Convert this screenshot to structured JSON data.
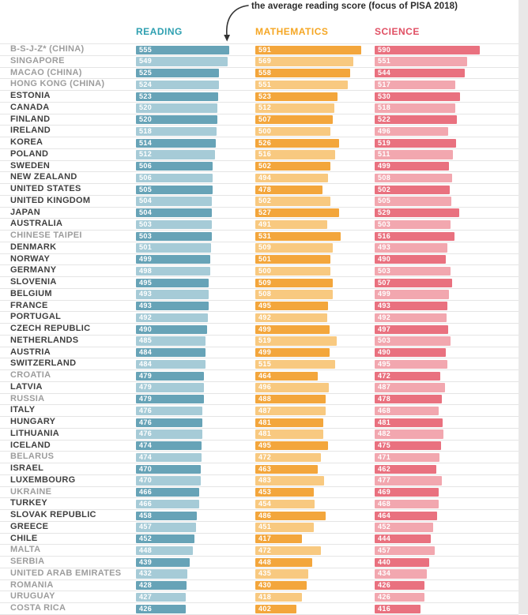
{
  "annotation": {
    "text": "the average reading score (focus of PISA 2018)"
  },
  "columns": {
    "reading": {
      "label": "READING",
      "header_color": "#2d9fb0",
      "bar_dark": "#67a3b7",
      "bar_light": "#a6cbd7"
    },
    "mathematics": {
      "label": "MATHEMATICS",
      "header_color": "#f5a623",
      "bar_dark": "#f3a63c",
      "bar_light": "#f8c980"
    },
    "science": {
      "label": "SCIENCE",
      "header_color": "#e04f63",
      "bar_dark": "#e9717f",
      "bar_light": "#f2a7af"
    }
  },
  "chart_data": {
    "type": "bar",
    "orientation": "horizontal",
    "title": "",
    "annotation": "the average reading score (focus of PISA 2018)",
    "legend": [
      "READING",
      "MATHEMATICS",
      "SCIENCE"
    ],
    "legend_position": "top",
    "grid": false,
    "bar_length_zero_at": 280,
    "categories": [
      "B-S-J-Z* (CHINA)",
      "SINGAPORE",
      "MACAO (CHINA)",
      "HONG KONG (CHINA)",
      "ESTONIA",
      "CANADA",
      "FINLAND",
      "IRELAND",
      "KOREA",
      "POLAND",
      "SWEDEN",
      "NEW ZEALAND",
      "UNITED STATES",
      "UNITED KINGDOM",
      "JAPAN",
      "AUSTRALIA",
      "CHINESE TAIPEI",
      "DENMARK",
      "NORWAY",
      "GERMANY",
      "SLOVENIA",
      "BELGIUM",
      "FRANCE",
      "PORTUGAL",
      "CZECH REPUBLIC",
      "NETHERLANDS",
      "AUSTRIA",
      "SWITZERLAND",
      "CROATIA",
      "LATVIA",
      "RUSSIA",
      "ITALY",
      "HUNGARY",
      "LITHUANIA",
      "ICELAND",
      "BELARUS",
      "ISRAEL",
      "LUXEMBOURG",
      "UKRAINE",
      "TURKEY",
      "SLOVAK REPUBLIC",
      "GREECE",
      "CHILE",
      "MALTA",
      "SERBIA",
      "UNITED ARAB EMIRATES",
      "ROMANIA",
      "URUGUAY",
      "COSTA RICA"
    ],
    "muted_categories": [
      "B-S-J-Z* (CHINA)",
      "SINGAPORE",
      "MACAO (CHINA)",
      "HONG KONG (CHINA)",
      "CHINESE TAIPEI",
      "CROATIA",
      "RUSSIA",
      "BELARUS",
      "UKRAINE",
      "MALTA",
      "SERBIA",
      "UNITED ARAB EMIRATES",
      "ROMANIA",
      "URUGUAY",
      "COSTA RICA"
    ],
    "series": [
      {
        "name": "READING",
        "values": [
          555,
          549,
          525,
          524,
          523,
          520,
          520,
          518,
          514,
          512,
          506,
          506,
          505,
          504,
          504,
          503,
          503,
          501,
          499,
          498,
          495,
          493,
          493,
          492,
          490,
          485,
          484,
          484,
          479,
          479,
          479,
          476,
          476,
          476,
          474,
          474,
          470,
          470,
          466,
          466,
          458,
          457,
          452,
          448,
          439,
          432,
          428,
          427,
          426
        ]
      },
      {
        "name": "MATHEMATICS",
        "values": [
          591,
          569,
          558,
          551,
          523,
          512,
          507,
          500,
          526,
          516,
          502,
          494,
          478,
          502,
          527,
          491,
          531,
          509,
          501,
          500,
          509,
          508,
          495,
          492,
          499,
          519,
          499,
          515,
          464,
          496,
          488,
          487,
          481,
          481,
          495,
          472,
          463,
          483,
          453,
          454,
          486,
          451,
          417,
          472,
          448,
          435,
          430,
          418,
          402
        ]
      },
      {
        "name": "SCIENCE",
        "values": [
          590,
          551,
          544,
          517,
          530,
          518,
          522,
          496,
          519,
          511,
          499,
          508,
          502,
          505,
          529,
          503,
          516,
          493,
          490,
          503,
          507,
          499,
          493,
          492,
          497,
          503,
          490,
          495,
          472,
          487,
          478,
          468,
          481,
          482,
          475,
          471,
          462,
          477,
          469,
          468,
          464,
          452,
          444,
          457,
          440,
          434,
          426,
          426,
          416
        ]
      }
    ]
  }
}
